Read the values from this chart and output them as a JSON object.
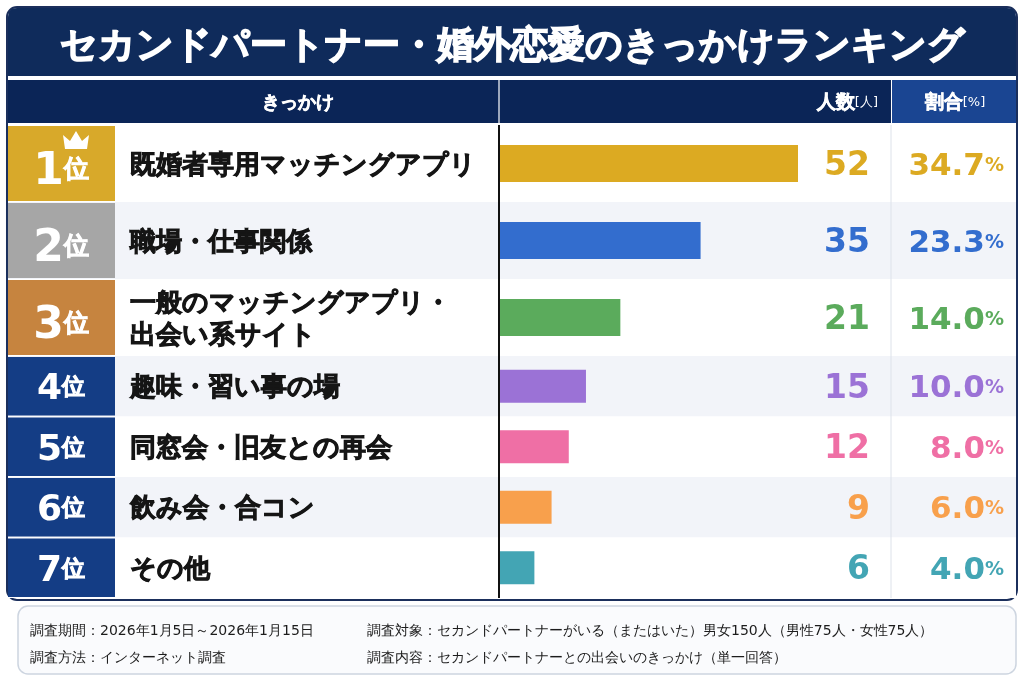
{
  "chart_data": {
    "type": "bar",
    "orientation": "horizontal",
    "title": "セカンドパートナー・婚外恋愛のきっかけランキング",
    "ylabel": "きっかけ",
    "xlabel": "人数[人]",
    "categories": [
      "既婚者専用マッチングアプリ",
      "職場・仕事関係",
      "一般のマッチングアプリ・出会い系サイト",
      "趣味・習い事の場",
      "同窓会・旧友との再会",
      "飲み会・合コン",
      "その他"
    ],
    "values": [
      52,
      35,
      21,
      15,
      12,
      9,
      6
    ],
    "colors": [
      "#dcaa22",
      "#336dce",
      "#5bab5c",
      "#9b72d6",
      "#ef6fa5",
      "#f8a04c",
      "#43a5b4"
    ],
    "data_labels": true,
    "annotations": [
      "割合[%]",
      "1位",
      "2位",
      "3位",
      "4位",
      "5位",
      "6位",
      "7位",
      "34.7%",
      "23.3%",
      "14.0%",
      "10.0%",
      "8.0%",
      "6.0%",
      "4.0%",
      "調査期間：2026年1月5日～2026年1月15日",
      "調査対象：セカンドパートナーがいる（またはいた）男女150人（男性75人・女性75人）",
      "調査方法：インターネット調査",
      "調査内容：セカンドパートナーとの出会いのきっかけ（単一回答）"
    ]
  }
}
